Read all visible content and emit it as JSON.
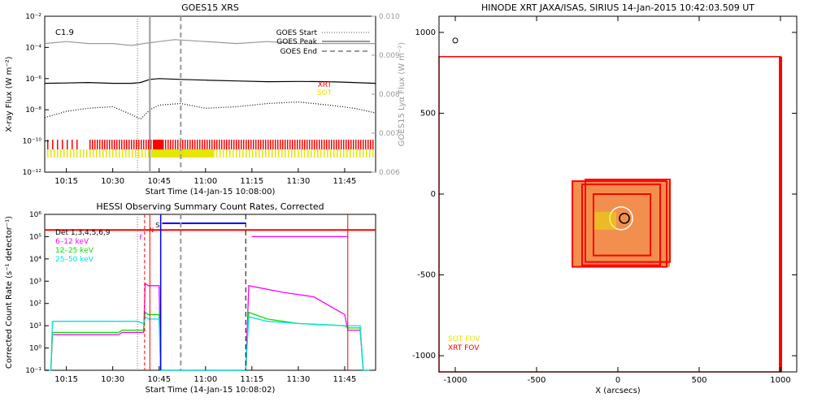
{
  "colors": {
    "xrt": "#ff0000",
    "sot": "#e6e600",
    "goes_long": "#000000",
    "goes_short": "#000000",
    "lya": "#999999",
    "hessi_6_12": "#ff00ff",
    "hessi_12_25": "#00e000",
    "hessi_25_50": "#00e0e0",
    "hessi_background": "#ff0000",
    "hessi_spacecraft": "#0000ff",
    "axis": "#000000",
    "map_fill": "#fff3df",
    "map_patch": "#f07b30"
  },
  "chart_data": [
    {
      "type": "line",
      "title": "GOES15 XRS",
      "xlabel": "Start Time (14-Jan-15 10:08:00)",
      "ylabel": "X-ray Flux (W m⁻²)",
      "y2label": "GOES15 Lyα Flux (W m⁻²)",
      "x_tick_labels": [
        "10:15",
        "10:30",
        "10:45",
        "11:00",
        "11:15",
        "11:30",
        "11:45"
      ],
      "y_tick_labels": [
        "10⁻²",
        "10⁻⁴",
        "10⁻⁶",
        "10⁻⁸",
        "10⁻¹⁰",
        "10⁻¹²"
      ],
      "y2_tick_labels": [
        "0.010",
        "0.009",
        "0.008",
        "0.007",
        "0.006"
      ],
      "flare_class": "C1.9",
      "legend": [
        "GOES Start",
        "GOES Peak",
        "GOES End"
      ],
      "instrument_labels": [
        "XRT",
        "SOT"
      ],
      "y_log_range": [
        -12,
        -2
      ],
      "y2_range": [
        0.006,
        0.01
      ],
      "x_minutes_range": [
        8,
        115
      ],
      "events_minutes": {
        "start": 38,
        "peak": 42,
        "end": 52
      },
      "series": [
        {
          "name": "Lyα",
          "style": "gray",
          "x": [
            8,
            15,
            22,
            30,
            36,
            40,
            45,
            50,
            60,
            70,
            80,
            90,
            100,
            108,
            115
          ],
          "y": [
            0.0093,
            0.00935,
            0.0093,
            0.0093,
            0.00925,
            0.0093,
            0.00935,
            0.0094,
            0.00935,
            0.0093,
            0.00935,
            0.0093,
            0.0093,
            0.0093,
            0.0093
          ]
        },
        {
          "name": "Long",
          "style": "solid",
          "x": [
            8,
            15,
            22,
            30,
            36,
            39,
            42,
            45,
            52,
            60,
            70,
            80,
            90,
            100,
            108,
            115
          ],
          "y": [
            -6.3,
            -6.28,
            -6.25,
            -6.3,
            -6.3,
            -6.25,
            -6.05,
            -6.0,
            -6.05,
            -6.1,
            -6.15,
            -6.2,
            -6.18,
            -6.2,
            -6.25,
            -6.3
          ]
        },
        {
          "name": "Short",
          "style": "dotted",
          "x": [
            8,
            15,
            22,
            30,
            36,
            39,
            42,
            45,
            52,
            60,
            70,
            80,
            90,
            100,
            108,
            115
          ],
          "y": [
            -8.5,
            -8.1,
            -7.9,
            -7.8,
            -8.3,
            -8.6,
            -8.0,
            -7.7,
            -7.6,
            -7.9,
            -7.8,
            -7.6,
            -7.5,
            -7.7,
            -7.9,
            -8.2
          ]
        }
      ]
    },
    {
      "type": "line",
      "title": "HESSI Observing Summary Count Rates, Corrected",
      "xlabel": "Start Time (14-Jan-15 10:08:02)",
      "ylabel": "Corrected Count Rate (s⁻¹ detector⁻¹)",
      "x_tick_labels": [
        "10:15",
        "10:30",
        "10:45",
        "11:00",
        "11:15",
        "11:30",
        "11:45"
      ],
      "y_tick_labels": [
        "10⁶",
        "10⁵",
        "10⁴",
        "10³",
        "10²",
        "10¹",
        "10⁰",
        "10⁻¹"
      ],
      "y_log_range": [
        -1,
        6
      ],
      "x_minutes_range": [
        8,
        115
      ],
      "legend": [
        "Det 1,3,4,5,6,9",
        "6–12 keV",
        "12–25 keV",
        "25–50 keV"
      ],
      "flag_labels": [
        "F",
        "N",
        "S"
      ],
      "series": [
        {
          "name": "6–12 keV",
          "x": [
            8,
            10,
            10.5,
            32,
            33,
            38,
            40,
            40.5,
            41.5,
            45,
            45.5,
            73,
            74,
            85,
            95,
            105,
            106,
            110,
            111,
            113
          ],
          "y": [
            -1,
            -1,
            0.6,
            0.6,
            0.7,
            0.7,
            0.7,
            2.9,
            2.8,
            2.8,
            -1,
            -1,
            2.8,
            2.5,
            2.3,
            1.5,
            0.8,
            0.8,
            -1,
            -1
          ]
        },
        {
          "name": "12–25 keV",
          "x": [
            8,
            10,
            10.5,
            32,
            33,
            38,
            40,
            40.5,
            41.5,
            45,
            45.5,
            73,
            74,
            80,
            90,
            105,
            106,
            110,
            111,
            113
          ],
          "y": [
            -1,
            -1,
            0.7,
            0.7,
            0.8,
            0.8,
            0.8,
            1.6,
            1.5,
            1.5,
            -1,
            -1,
            1.6,
            1.3,
            1.1,
            1.0,
            0.9,
            0.9,
            -1,
            -1
          ]
        },
        {
          "name": "25–50 keV",
          "x": [
            8,
            10,
            10.5,
            32,
            33,
            38,
            40,
            40.5,
            41.5,
            45,
            45.5,
            73,
            74,
            80,
            90,
            105,
            106,
            110,
            111,
            113
          ],
          "y": [
            -1,
            -1,
            1.2,
            1.2,
            1.2,
            1.2,
            1.1,
            1.4,
            1.3,
            1.3,
            -1,
            -1,
            1.4,
            1.2,
            1.1,
            1.0,
            1.0,
            1.0,
            -1,
            -1
          ]
        },
        {
          "name": "background",
          "x": [
            8,
            40.5,
            40.5,
            106,
            106,
            115
          ],
          "y": [
            5.3,
            5.3,
            5.3,
            5.3,
            5.3,
            5.3
          ]
        },
        {
          "name": "6–12 keV (upper)",
          "x": [
            75,
            106
          ],
          "y": [
            5.0,
            5.0
          ]
        },
        {
          "name": "spacecraft",
          "x": [
            46,
            73
          ],
          "y": [
            5.6,
            5.6
          ]
        }
      ]
    },
    {
      "type": "scatter",
      "title": "HINODE XRT JAXA/ISAS, SIRIUS 14-Jan-2015 10:42:03.509 UT",
      "xlabel": "X (arcsecs)",
      "ylabel": "",
      "x_tick_labels": [
        "-1000",
        "-500",
        "0",
        "500",
        "1000"
      ],
      "y_tick_labels": [
        "1000",
        "500",
        "0",
        "-500",
        "-1000"
      ],
      "xlim": [
        -1100,
        1100
      ],
      "ylim": [
        -1100,
        1100
      ],
      "legend": [
        "SOT FOV",
        "XRT FOV"
      ],
      "fov_boxes": [
        {
          "x0": -1100,
          "y0": -1100,
          "x1": 1000,
          "y1": 850
        },
        {
          "x0": -280,
          "y0": -450,
          "x1": 300,
          "y1": 80
        },
        {
          "x0": -200,
          "y0": -420,
          "x1": 320,
          "y1": 90
        },
        {
          "x0": -150,
          "y0": -380,
          "x1": 200,
          "y1": 0
        },
        {
          "x0": -220,
          "y0": -440,
          "x1": 260,
          "y1": 60
        }
      ]
    }
  ]
}
